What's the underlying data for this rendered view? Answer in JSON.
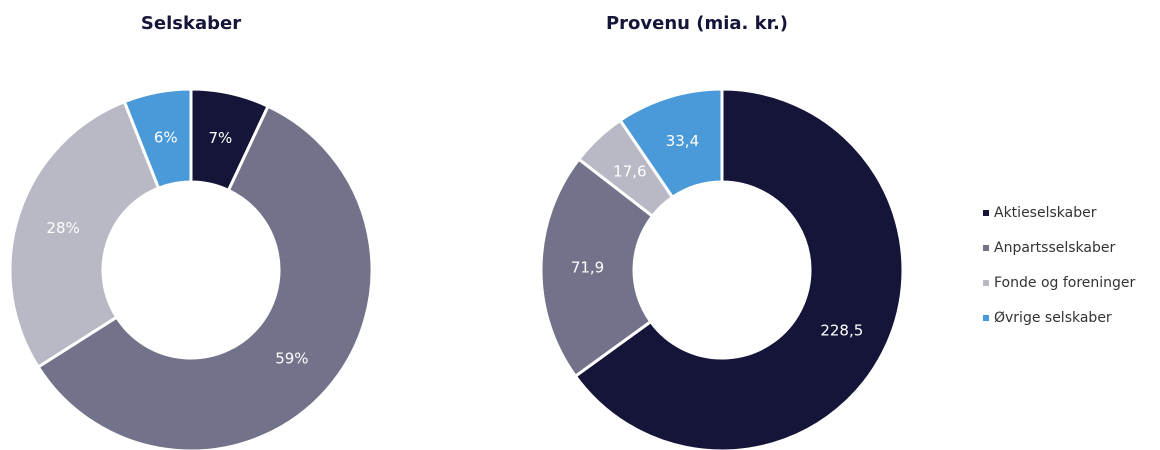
{
  "chart_data": [
    {
      "type": "pie",
      "title": "Selskaber",
      "values": [
        7,
        59,
        28,
        6
      ],
      "value_labels": [
        "7%",
        "59%",
        "28%",
        "6%"
      ]
    },
    {
      "type": "pie",
      "title": "Provenu (mia. kr.)",
      "values": [
        228.5,
        71.9,
        17.6,
        33.4
      ],
      "value_labels": [
        "228,5",
        "71,9",
        "17,6",
        "33,4"
      ]
    }
  ],
  "legend": {
    "categories": [
      "Aktieselskaber",
      "Anpartsselskaber",
      "Fonde og foreninger",
      "Øvrige selskaber"
    ],
    "colors": [
      "#15153a",
      "#72728a",
      "#b9b9c6",
      "#4a9ad9"
    ]
  }
}
